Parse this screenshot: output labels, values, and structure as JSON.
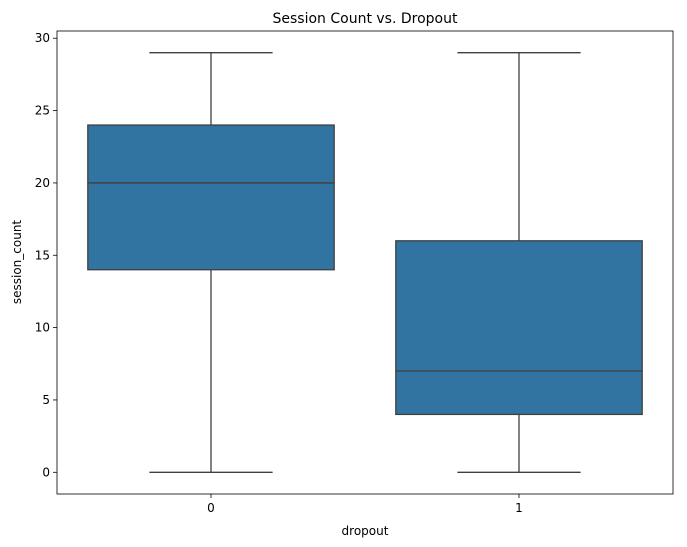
{
  "chart_data": {
    "type": "box",
    "title": "Session Count vs. Dropout",
    "xlabel": "dropout",
    "ylabel": "session_count",
    "categories": [
      "0",
      "1"
    ],
    "ylim": [
      -1.5,
      30.5
    ],
    "yticks": [
      0,
      5,
      10,
      15,
      20,
      25,
      30
    ],
    "grid": false,
    "box_color": "#3274a1",
    "line_color": "#3f3f3f",
    "series": [
      {
        "category": "0",
        "min": 0,
        "q1": 14,
        "median": 20,
        "q3": 24,
        "max": 29
      },
      {
        "category": "1",
        "min": 0,
        "q1": 4,
        "median": 7,
        "q3": 16,
        "max": 29
      }
    ]
  }
}
